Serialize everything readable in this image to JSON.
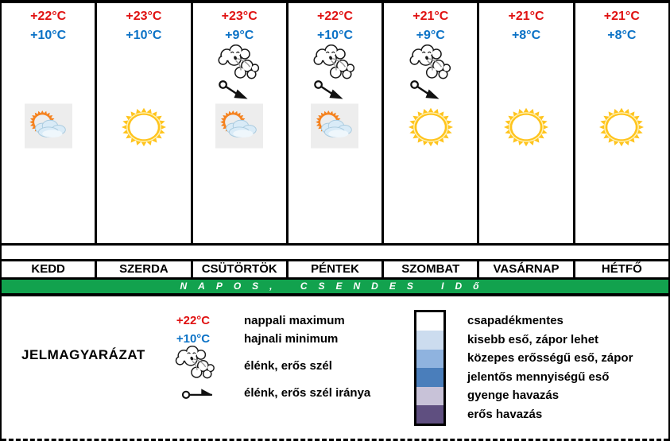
{
  "forecast": {
    "days": [
      {
        "name": "KEDD",
        "max": "+22°C",
        "min": "+10°C",
        "wind": false,
        "icon": "partly-cloudy"
      },
      {
        "name": "SZERDA",
        "max": "+23°C",
        "min": "+10°C",
        "wind": false,
        "icon": "sun"
      },
      {
        "name": "CSÜTÖRTÖK",
        "max": "+23°C",
        "min": "+9°C",
        "wind": true,
        "icon": "partly-cloudy"
      },
      {
        "name": "PÉNTEK",
        "max": "+22°C",
        "min": "+10°C",
        "wind": true,
        "icon": "partly-cloudy"
      },
      {
        "name": "SZOMBAT",
        "max": "+21°C",
        "min": "+9°C",
        "wind": true,
        "icon": "sun"
      },
      {
        "name": "VASÁRNAP",
        "max": "+21°C",
        "min": "+8°C",
        "wind": false,
        "icon": "sun"
      },
      {
        "name": "HÉTFŐ",
        "max": "+21°C",
        "min": "+8°C",
        "wind": false,
        "icon": "sun"
      }
    ]
  },
  "banner": {
    "text": "NAPOS, CSENDES IDő"
  },
  "legend": {
    "title": "JELMAGYARÁZAT",
    "rows": [
      {
        "symbol": "+22°C",
        "label": "nappali maximum"
      },
      {
        "symbol": "+10°C",
        "label": "hajnali minimum"
      },
      {
        "symbol": "wind-cloud-icon",
        "label": "élénk, erős szél"
      },
      {
        "symbol": "wind-direction-icon",
        "label": "élénk, erős szél iránya"
      }
    ],
    "scale": [
      {
        "color": "#FFFFFF",
        "label": "csapadékmentes"
      },
      {
        "color": "#CCDCEF",
        "label": "kisebb eső, zápor lehet"
      },
      {
        "color": "#8FB3DF",
        "label": "közepes erősségű eső, zápor"
      },
      {
        "color": "#4A7EBB",
        "label": "jelentős mennyiségű eső"
      },
      {
        "color": "#C8C2D8",
        "label": "gyenge havazás"
      },
      {
        "color": "#5F4F80",
        "label": "erős havazás"
      }
    ]
  },
  "colors": {
    "temp_max": "#E01212",
    "temp_min": "#0B72C6",
    "banner_bg": "#12A24E",
    "banner_text": "#FFFFFF",
    "border": "#000000"
  }
}
